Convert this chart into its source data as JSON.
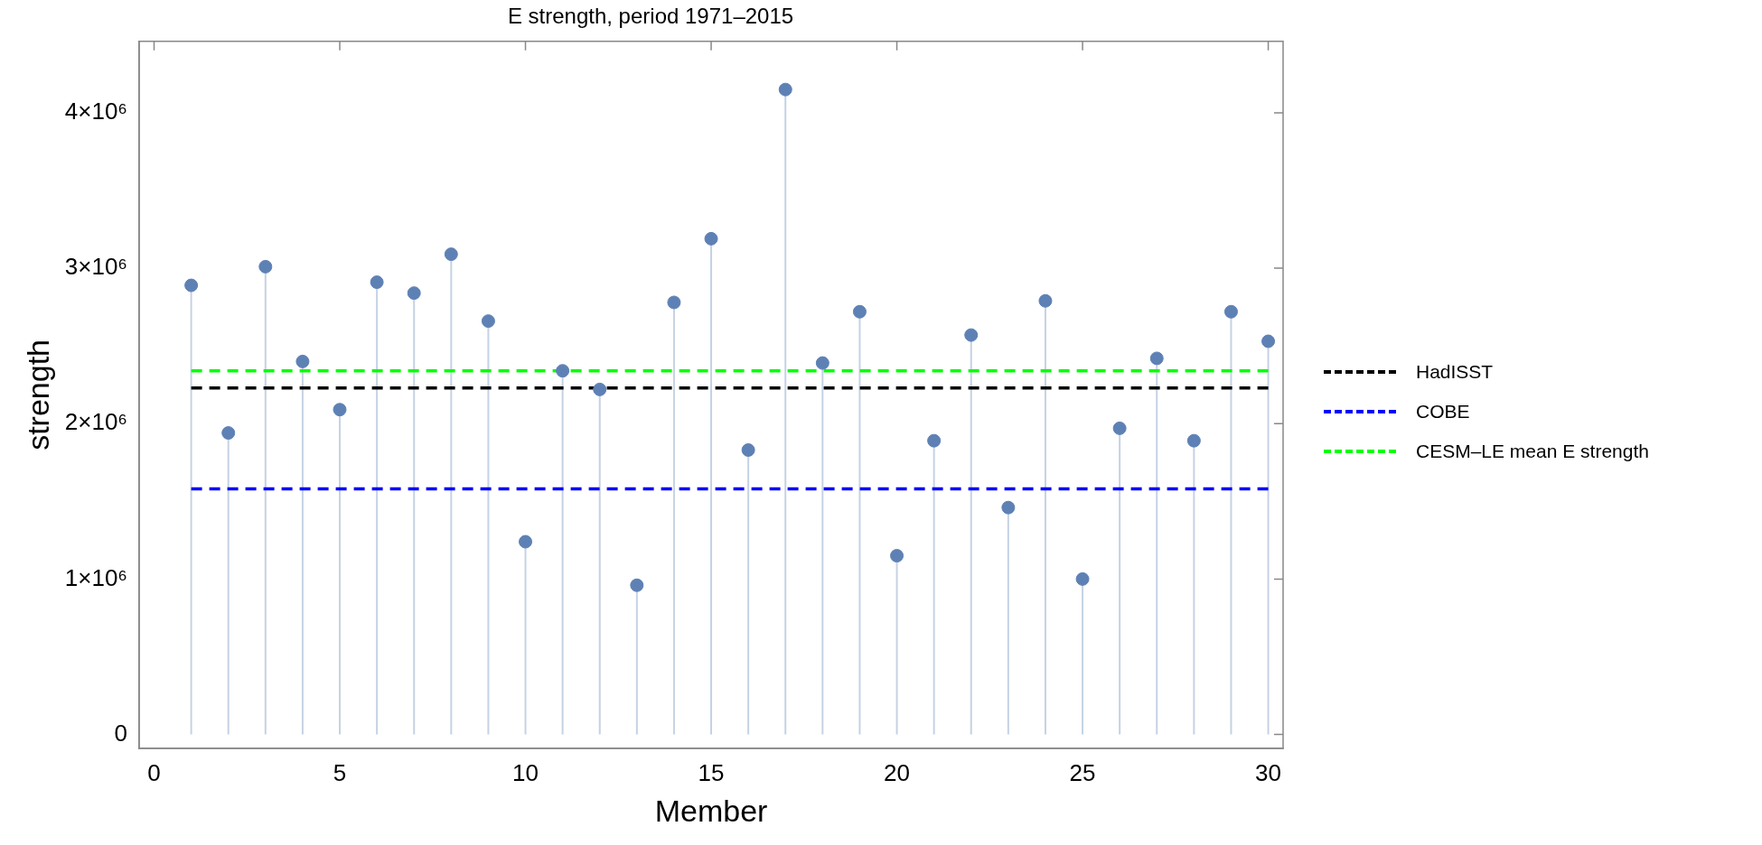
{
  "chart_data": {
    "type": "lollipop",
    "title": "E strength, period 1971–2015",
    "xlabel": "Member",
    "ylabel": "strength",
    "x": [
      1,
      2,
      3,
      4,
      5,
      6,
      7,
      8,
      9,
      10,
      11,
      12,
      13,
      14,
      15,
      16,
      17,
      18,
      19,
      20,
      21,
      22,
      23,
      24,
      25,
      26,
      27,
      28,
      29,
      30
    ],
    "series": [
      {
        "color": "#5e81b5",
        "values": [
          2890000,
          1940000,
          3010000,
          2400000,
          2090000,
          2910000,
          2840000,
          3090000,
          2660000,
          1240000,
          2340000,
          2220000,
          960000,
          2780000,
          3190000,
          1830000,
          4150000,
          2390000,
          2720000,
          1150000,
          1890000,
          2570000,
          1460000,
          2790000,
          1000000,
          1970000,
          2420000,
          1890000,
          2720000,
          2530000
        ]
      }
    ],
    "ref_lines": [
      {
        "axis": "y",
        "value": 2230000,
        "label": "HadISST",
        "color": "#000000",
        "line_style": "dashed"
      },
      {
        "axis": "y",
        "value": 1580000,
        "label": "COBE",
        "color": "#0000ff",
        "line_style": "dashed"
      },
      {
        "axis": "y",
        "value": 2340000,
        "label": "CESM–LE mean E strength",
        "color": "#00ff00",
        "line_style": "dashed"
      }
    ],
    "xlim": [
      -0.4,
      30.4
    ],
    "xticks": [
      0,
      5,
      10,
      15,
      20,
      25,
      30
    ],
    "ylim": [
      -90000,
      4460000
    ],
    "yticks": [
      0,
      {
        "value": 1000000,
        "label": "1×10⁶"
      },
      {
        "value": 2000000,
        "label": "2×10⁶"
      },
      {
        "value": 3000000,
        "label": "3×10⁶"
      },
      {
        "value": 4000000,
        "label": "4×10⁶"
      }
    ],
    "grid": false,
    "legend": "right",
    "marker": "circle"
  }
}
